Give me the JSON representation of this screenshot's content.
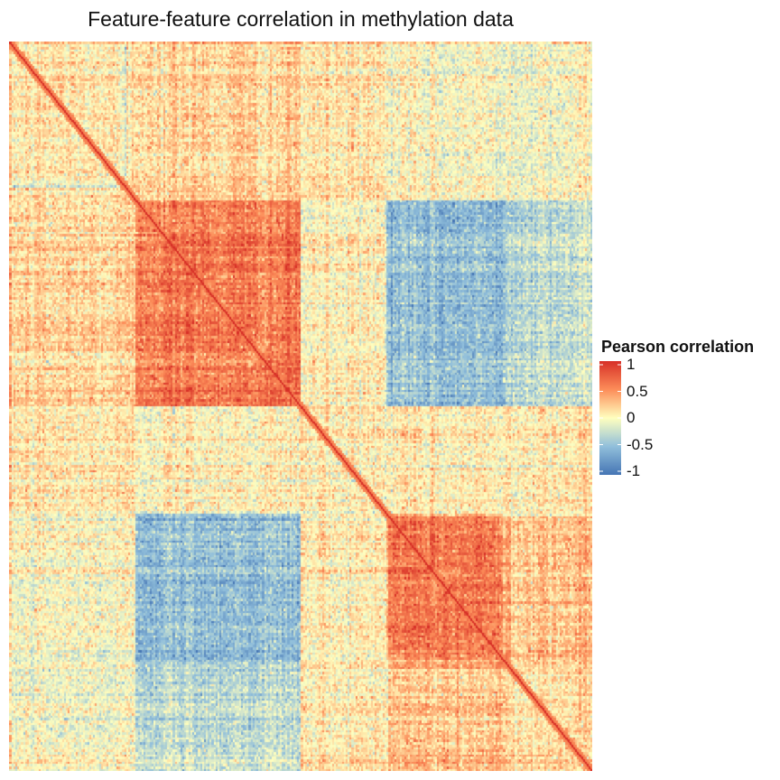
{
  "chart_data": {
    "type": "heatmap",
    "title": "Feature-feature correlation in methylation data",
    "xlabel": "",
    "ylabel": "",
    "value_range": [
      -1,
      1
    ],
    "grid": false,
    "diagonal_value": 1,
    "blocks": [
      {
        "rows": [
          0,
          0.215
        ],
        "cols": [
          0,
          0.215
        ],
        "mean": 0.1
      },
      {
        "rows": [
          0,
          0.215
        ],
        "cols": [
          0.215,
          0.645
        ],
        "mean": 0.15
      },
      {
        "rows": [
          0,
          0.215
        ],
        "cols": [
          0.645,
          1.0
        ],
        "mean": -0.05
      },
      {
        "rows": [
          0.215,
          0.5
        ],
        "cols": [
          0,
          0.215
        ],
        "mean": 0.2
      },
      {
        "rows": [
          0.215,
          0.5
        ],
        "cols": [
          0.215,
          0.5
        ],
        "mean": 0.6
      },
      {
        "rows": [
          0.215,
          0.5
        ],
        "cols": [
          0.5,
          0.645
        ],
        "mean": 0.05
      },
      {
        "rows": [
          0.215,
          0.5
        ],
        "cols": [
          0.645,
          0.86
        ],
        "mean": -0.5
      },
      {
        "rows": [
          0.215,
          0.5
        ],
        "cols": [
          0.86,
          1.0
        ],
        "mean": -0.3
      },
      {
        "rows": [
          0.5,
          0.645
        ],
        "cols": [
          0,
          1.0
        ],
        "mean": 0.05
      },
      {
        "rows": [
          0.645,
          0.845
        ],
        "cols": [
          0,
          0.215
        ],
        "mean": 0.0
      },
      {
        "rows": [
          0.645,
          0.845
        ],
        "cols": [
          0.215,
          0.5
        ],
        "mean": -0.5
      },
      {
        "rows": [
          0.645,
          0.845
        ],
        "cols": [
          0.5,
          0.645
        ],
        "mean": 0.05
      },
      {
        "rows": [
          0.645,
          0.845
        ],
        "cols": [
          0.645,
          0.86
        ],
        "mean": 0.6
      },
      {
        "rows": [
          0.645,
          0.845
        ],
        "cols": [
          0.86,
          1.0
        ],
        "mean": 0.4
      },
      {
        "rows": [
          0.845,
          1.0
        ],
        "cols": [
          0,
          0.215
        ],
        "mean": 0.0
      },
      {
        "rows": [
          0.845,
          1.0
        ],
        "cols": [
          0.215,
          0.5
        ],
        "mean": -0.2
      },
      {
        "rows": [
          0.845,
          1.0
        ],
        "cols": [
          0.5,
          1.0
        ],
        "mean": 0.15
      }
    ]
  },
  "legend": {
    "title": "Pearson correlation",
    "ticks": [
      {
        "value": 1,
        "label": "1"
      },
      {
        "value": 0.5,
        "label": "0.5"
      },
      {
        "value": 0,
        "label": "0"
      },
      {
        "value": -0.5,
        "label": "-0.5"
      },
      {
        "value": -1,
        "label": "-1"
      }
    ],
    "colors": {
      "high": "#d73027",
      "mid_high": "#fc8d59",
      "mid": "#ffffbf",
      "mid_low": "#91bfdb",
      "low": "#4575b4"
    }
  }
}
